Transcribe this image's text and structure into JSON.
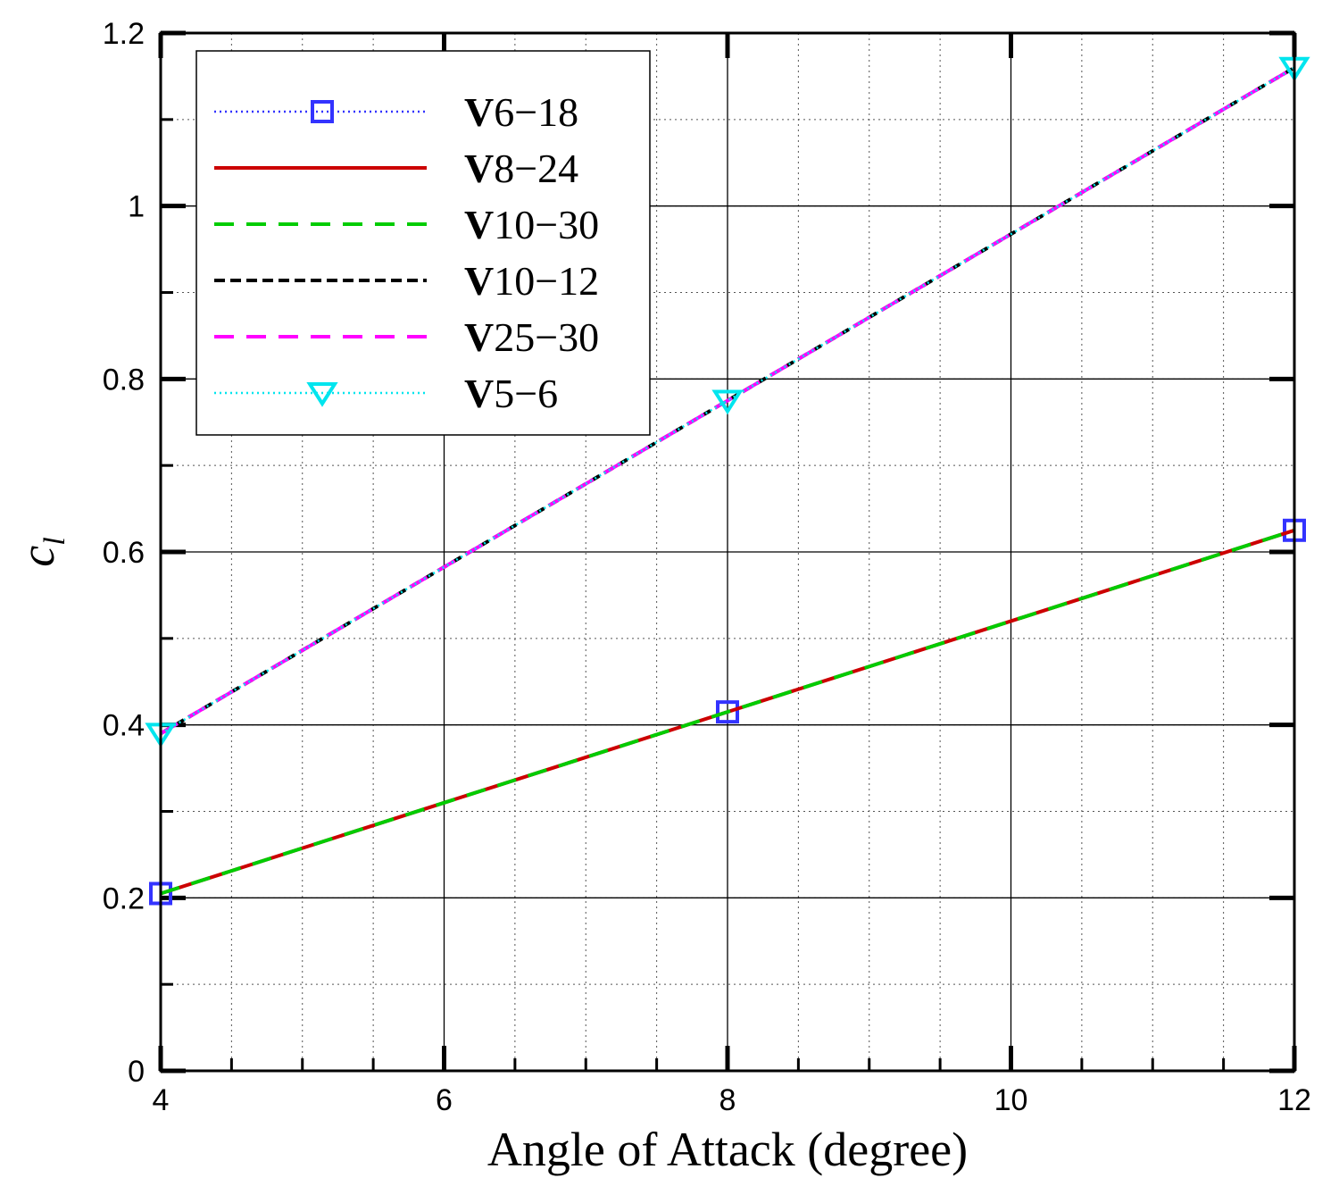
{
  "chart_data": {
    "type": "line",
    "xlabel": "Angle of Attack (degree)",
    "ylabel": "c",
    "ylabel_subscript": "l",
    "xlim": [
      4,
      12
    ],
    "ylim": [
      0,
      1.2
    ],
    "x_ticks": [
      4,
      6,
      8,
      10,
      12
    ],
    "x_tick_labels": [
      "4",
      "6",
      "8",
      "10",
      "12"
    ],
    "y_ticks": [
      0,
      0.2,
      0.4,
      0.6,
      0.8,
      1,
      1.2
    ],
    "y_tick_labels": [
      "0",
      "0.2",
      "0.4",
      "0.6",
      "0.8",
      "1",
      "1.2"
    ],
    "grid": true,
    "legend_position": "top-left",
    "x": [
      4,
      8,
      12
    ],
    "series": [
      {
        "name": "V6−18",
        "values": [
          0.205,
          0.415,
          0.625
        ],
        "color": "#3333ff",
        "line": "dotted",
        "marker": "square"
      },
      {
        "name": "V8−24",
        "values": [
          0.205,
          0.415,
          0.625
        ],
        "color": "#cc0000",
        "line": "solid",
        "marker": "none"
      },
      {
        "name": "V10−30",
        "values": [
          0.205,
          0.415,
          0.625
        ],
        "color": "#00cc00",
        "line": "dashed",
        "marker": "none"
      },
      {
        "name": "V10−12",
        "values": [
          0.39,
          0.775,
          1.16
        ],
        "color": "#000000",
        "line": "short-dash",
        "marker": "none"
      },
      {
        "name": "V25−30",
        "values": [
          0.39,
          0.775,
          1.16
        ],
        "color": "#ff00ff",
        "line": "dashed",
        "marker": "none"
      },
      {
        "name": "V5−6",
        "values": [
          0.39,
          0.775,
          1.16
        ],
        "color": "#00e5ee",
        "line": "dotted",
        "marker": "triangle-down"
      }
    ]
  }
}
